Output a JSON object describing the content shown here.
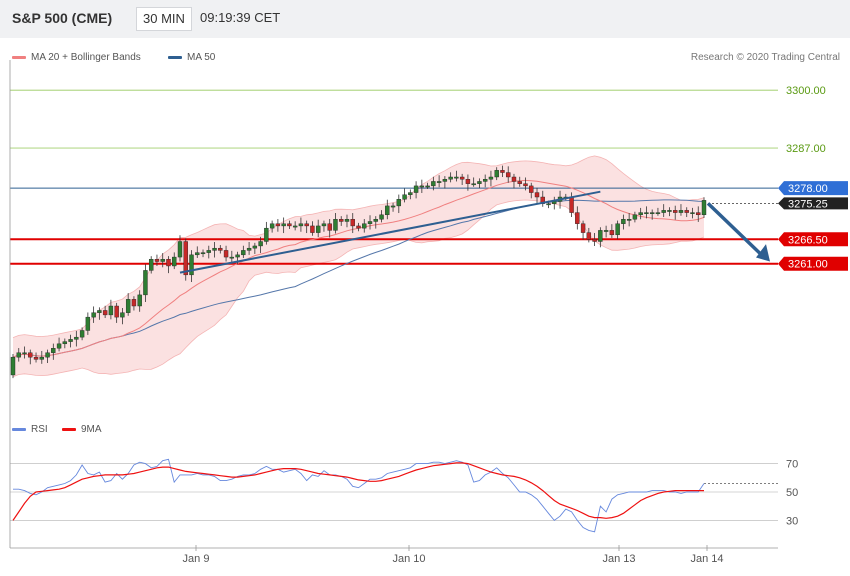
{
  "header": {
    "title": "S&P 500 (CME)",
    "timeframe": "30 MIN",
    "time": "09:19:39 CET"
  },
  "legend": {
    "ma20_bb": {
      "label": "MA 20 + Bollinger Bands",
      "color": "#f08080"
    },
    "ma50": {
      "label": "MA 50",
      "color": "#2e5f91"
    }
  },
  "credit": "Research © 2020 Trading Central",
  "rsi_legend": {
    "rsi": {
      "label": "RSI",
      "color": "#6688dd"
    },
    "ma9": {
      "label": "9MA",
      "color": "#ee1111"
    }
  },
  "chart_data": [
    {
      "type": "candlestick",
      "x_labels": [
        "Jan 9",
        "Jan 10",
        "Jan 13",
        "Jan 14"
      ],
      "y_range": [
        3227,
        3305
      ],
      "levels": [
        {
          "value": 3300.0,
          "label": "3300.00",
          "style": "resistance-green"
        },
        {
          "value": 3287.0,
          "label": "3287.00",
          "style": "resistance-green"
        },
        {
          "value": 3278.0,
          "label": "3278.00",
          "style": "pivot-blue"
        },
        {
          "value": 3266.5,
          "label": "3266.50",
          "style": "support-red"
        },
        {
          "value": 3261.0,
          "label": "3261.00",
          "style": "support-red"
        }
      ],
      "current_price": {
        "value": 3275.25,
        "label": "3275.25"
      },
      "close": [
        3240,
        3241,
        3241,
        3240,
        3239.5,
        3240,
        3241,
        3242,
        3243,
        3243.5,
        3244,
        3244.5,
        3246,
        3249,
        3250,
        3250.5,
        3249.5,
        3251.5,
        3249,
        3250,
        3253,
        3251.5,
        3254,
        3259.5,
        3262,
        3261.5,
        3262,
        3260.5,
        3262.5,
        3266,
        3258.5,
        3263,
        3263.5,
        3263.5,
        3264,
        3264.5,
        3264,
        3262.5,
        3262.5,
        3263,
        3264,
        3264.5,
        3265,
        3266,
        3269,
        3270,
        3269.5,
        3270,
        3269.5,
        3269.5,
        3270,
        3269.5,
        3268,
        3269.5,
        3270,
        3268.5,
        3271,
        3270.5,
        3271,
        3269.5,
        3269,
        3270,
        3270.5,
        3271,
        3272,
        3274,
        3274,
        3275.5,
        3276.5,
        3277,
        3278.5,
        3278.5,
        3278.5,
        3279.5,
        3279.5,
        3280,
        3280.5,
        3280.5,
        3280,
        3279,
        3279,
        3279.5,
        3280,
        3280.5,
        3282,
        3281.5,
        3280.5,
        3279.5,
        3279,
        3278.5,
        3277,
        3276,
        3274.5,
        3274.5,
        3275,
        3276,
        3276,
        3272.5,
        3270,
        3268,
        3266.5,
        3266,
        3268.5,
        3268.5,
        3267.5,
        3270,
        3271,
        3271,
        3272,
        3272.5,
        3272.5,
        3272.5,
        3272.5,
        3273,
        3273,
        3272.5,
        3273,
        3272.5,
        3272.5,
        3272,
        3275.25
      ]
    },
    {
      "type": "line",
      "title": "RSI",
      "y_ticks": [
        30,
        50,
        70
      ],
      "y_range": [
        12,
        88
      ],
      "series": [
        {
          "name": "RSI",
          "color": "#6688dd",
          "values": [
            52,
            52,
            51,
            49,
            48,
            50,
            53,
            54,
            55,
            56,
            58,
            62,
            69,
            63,
            62,
            64,
            57,
            58,
            63,
            59,
            63,
            69,
            71,
            70,
            67,
            68,
            72,
            73,
            57,
            62,
            62,
            62,
            63,
            62,
            62,
            61,
            58,
            58,
            59,
            61,
            62,
            62,
            63,
            66,
            68,
            66,
            66,
            64,
            65,
            66,
            63,
            58,
            62,
            61,
            65,
            62,
            62,
            61,
            59,
            54,
            53,
            56,
            59,
            59,
            60,
            63,
            64,
            65,
            66,
            67,
            70,
            70,
            70,
            71,
            71,
            70,
            71,
            72,
            71,
            69,
            57,
            58,
            62,
            64,
            67,
            63,
            60,
            55,
            50,
            50,
            48,
            45,
            40,
            35,
            30,
            33,
            38,
            36,
            30,
            25,
            23,
            22,
            40,
            36,
            45,
            48,
            49,
            50,
            50,
            50,
            50,
            51,
            51,
            51,
            50,
            50,
            49,
            50,
            50,
            50,
            56
          ]
        },
        {
          "name": "9MA",
          "color": "#ee1111",
          "values": [
            30,
            36,
            42,
            47,
            50,
            50.5,
            51,
            51.5,
            52,
            53,
            55,
            57,
            59,
            60,
            61,
            61.5,
            62,
            62,
            62,
            62,
            62.5,
            63,
            64,
            65,
            66,
            67,
            67.5,
            67.5,
            66.5,
            65.5,
            64.5,
            64,
            63.5,
            63,
            62.5,
            62,
            61.5,
            61,
            60.5,
            60.5,
            61,
            61.5,
            62,
            63,
            64,
            65,
            66,
            66.5,
            66.5,
            66.5,
            66,
            65,
            64,
            63,
            62.5,
            62,
            61.5,
            61,
            60.5,
            59.5,
            58.5,
            58,
            57.5,
            57.5,
            58,
            59,
            60,
            61,
            62.5,
            64,
            65.5,
            66.5,
            67.5,
            68.5,
            69,
            69.5,
            70,
            70.5,
            70.5,
            70,
            68.5,
            67,
            65.5,
            64,
            63,
            62,
            61.5,
            61,
            60,
            58.5,
            56.5,
            54,
            51,
            47.5,
            44,
            41.5,
            40,
            38.5,
            37,
            35,
            33,
            32,
            32,
            31.5,
            32,
            33,
            35,
            38,
            41,
            44,
            46,
            47.5,
            49,
            50,
            50.5,
            51,
            51,
            51,
            51,
            51,
            51
          ]
        }
      ]
    }
  ]
}
